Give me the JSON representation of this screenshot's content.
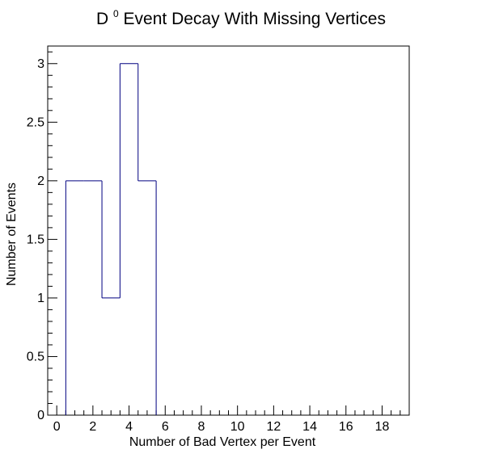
{
  "chart_data": {
    "type": "histogram",
    "title": {
      "prefix": "D",
      "superscript": "0",
      "suffix": " Event Decay With Missing Vertices"
    },
    "xlabel": "Number of Bad Vertex per Event",
    "ylabel": "Number of Events",
    "xlim": [
      -0.5,
      19.5
    ],
    "ylim": [
      0,
      3.15
    ],
    "bin_width": 1,
    "bins": [
      {
        "x": 1,
        "value": 2
      },
      {
        "x": 2,
        "value": 2
      },
      {
        "x": 3,
        "value": 1
      },
      {
        "x": 4,
        "value": 3
      },
      {
        "x": 5,
        "value": 2
      }
    ],
    "x_ticks": [
      0,
      2,
      4,
      6,
      8,
      10,
      12,
      14,
      16,
      18
    ],
    "x_tick_labels": [
      "0",
      "2",
      "4",
      "6",
      "8",
      "10",
      "12",
      "14",
      "16",
      "18"
    ],
    "y_ticks": [
      0,
      0.5,
      1,
      1.5,
      2,
      2.5,
      3
    ],
    "y_tick_labels": [
      "0",
      "0.5",
      "1",
      "1.5",
      "2",
      "2.5",
      "3"
    ],
    "line_color": "#000080",
    "grid": false,
    "legend": "none"
  }
}
